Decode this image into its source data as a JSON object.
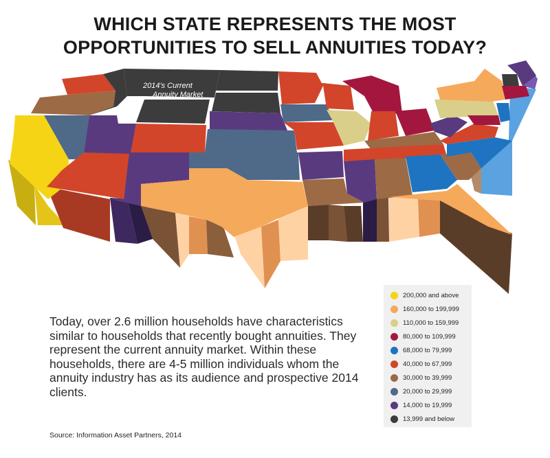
{
  "title_line1": "WHICH STATE REPRESENTS THE MOST",
  "title_line2": "OPPORTUNITIES TO SELL ANNUITIES TODAY?",
  "map_label_line1": "2014's Current",
  "map_label_line2": "Annuity Market",
  "body_text": "Today, over 2.6 million households have characteristics similar to households that recently bought annuities. They represent the current annuity market. Within these households, there are 4-5 million individuals whom the annuity industry has as its audience and prospective 2014 clients.",
  "source": "Source: Information Asset Partners, 2014",
  "legend": [
    {
      "label": "200,000 and above",
      "color": "#f5d416"
    },
    {
      "label": "160,000 to 199,999",
      "color": "#f5a95a"
    },
    {
      "label": "110,000 to 159,999",
      "color": "#d9cf8a"
    },
    {
      "label": "80,000 to 109,999",
      "color": "#a3173f"
    },
    {
      "label": "68,000 to 79,999",
      "color": "#1e74c0"
    },
    {
      "label": "40,000 to 67,999",
      "color": "#d2452a"
    },
    {
      "label": "30,000 to 39,999",
      "color": "#9c6a45"
    },
    {
      "label": "20,000 to 29,999",
      "color": "#4f6989"
    },
    {
      "label": "14,000 to 19,999",
      "color": "#5a3a7e"
    },
    {
      "label": "13,999 and below",
      "color": "#3c3c3c"
    }
  ]
}
